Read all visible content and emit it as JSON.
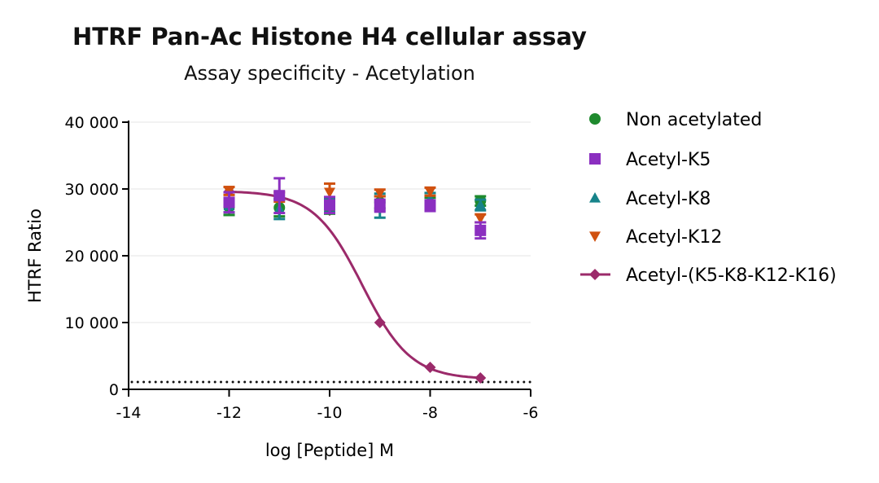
{
  "chart_data": {
    "type": "scatter",
    "title": "HTRF Pan-Ac Histone H4 cellular assay",
    "subtitle": "Assay specificity - Acetylation",
    "xlabel": "log [Peptide] M",
    "ylabel": "HTRF Ratio",
    "xlim": [
      -14,
      -6
    ],
    "ylim": [
      0,
      40000
    ],
    "xticks": [
      -14,
      -12,
      -10,
      -8,
      -6
    ],
    "xtick_labels": [
      "-14",
      "-12",
      "-10",
      "-8",
      "-6"
    ],
    "yticks": [
      0,
      10000,
      20000,
      30000,
      40000
    ],
    "ytick_labels": [
      "0",
      "10 000",
      "20 000",
      "30 000",
      "40 000"
    ],
    "grid": "horizontal",
    "legend_position": "right",
    "baseline_dotted": 1100,
    "x": [
      -12,
      -11,
      -10,
      -9,
      -8,
      -7
    ],
    "series": [
      {
        "name": "Non acetylated",
        "marker": "circle",
        "color": "#1f8a2e",
        "values": [
          27300,
          27200,
          27000,
          28000,
          27800,
          28200
        ],
        "errors": [
          1200,
          1300,
          700,
          900,
          900,
          700
        ]
      },
      {
        "name": "Acetyl-K5",
        "marker": "square",
        "color": "#8b2fc0",
        "values": [
          28000,
          29000,
          27600,
          27500,
          27500,
          23800
        ],
        "errors": [
          1500,
          2600,
          1200,
          900,
          800,
          1200
        ]
      },
      {
        "name": "Acetyl-K8",
        "marker": "triangle-up",
        "color": "#17838a",
        "values": [
          27500,
          27000,
          27500,
          27500,
          28500,
          27600
        ],
        "errors": [
          1000,
          1500,
          1000,
          1800,
          900,
          800
        ]
      },
      {
        "name": "Acetyl-K12",
        "marker": "triangle-down",
        "color": "#d0510f",
        "values": [
          29700,
          28800,
          29500,
          29400,
          29600,
          25600
        ],
        "errors": [
          600,
          700,
          1300,
          500,
          600,
          600
        ]
      },
      {
        "name": "Acetyl-(K5-K8-K12-K16)",
        "marker": "diamond",
        "color": "#9b2a6a",
        "values": [
          29600,
          29000,
          26800,
          10000,
          3300,
          1700
        ],
        "errors": [
          0,
          0,
          0,
          0,
          0,
          0
        ],
        "fit": {
          "model": "4PL",
          "top": 29700,
          "bottom": 1500,
          "logIC50": -9.35,
          "hill": 0.9
        }
      }
    ]
  }
}
